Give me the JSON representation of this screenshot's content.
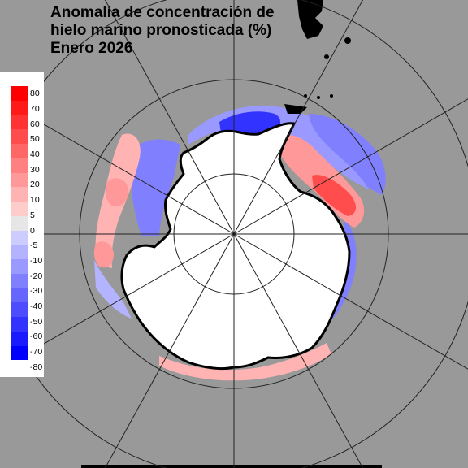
{
  "title_lines": [
    "Anomalía de concentración de",
    "hielo marino pronosticada (%)",
    "Enero 2026"
  ],
  "legend": {
    "labels": [
      "80",
      "70",
      "60",
      "50",
      "40",
      "30",
      "20",
      "10",
      "5",
      "0",
      "-5",
      "-10",
      "-20",
      "-30",
      "-40",
      "-50",
      "-60",
      "-70",
      "-80"
    ],
    "colors": [
      "#ff0000",
      "#ff1a1a",
      "#ff3333",
      "#ff4d4d",
      "#ff6666",
      "#ff8080",
      "#ff9999",
      "#ffb3b3",
      "#ffcccc",
      "#e6e6e6",
      "#ccccff",
      "#b3b3ff",
      "#9999ff",
      "#8080ff",
      "#6666ff",
      "#4d4dff",
      "#3333ff",
      "#1a1aff",
      "#0000ff"
    ]
  },
  "colors": {
    "background": "#999999",
    "land": "#ffffff",
    "coast": "#000000",
    "grid": "#222222",
    "positive_light": "#ffb3b3",
    "positive_mid": "#ff9999",
    "positive_strong": "#ff4d4d",
    "negative_light": "#b3b3ff",
    "negative_mid": "#8080ff",
    "negative_strong": "#3333ff"
  }
}
